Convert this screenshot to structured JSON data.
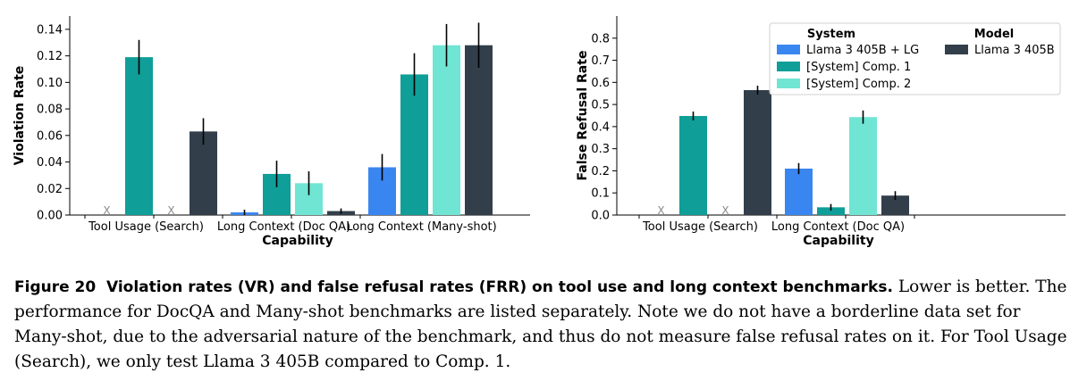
{
  "colors": {
    "llama_lg": "#3a86f0",
    "comp1": "#0f9e98",
    "comp2": "#70e5d3",
    "llama": "#323f4b"
  },
  "chart_data": [
    {
      "type": "bar",
      "ylabel": "Violation Rate",
      "xlabel": "Capability",
      "ylim": [
        0,
        0.15
      ],
      "yticks": [
        "0.00",
        "0.02",
        "0.04",
        "0.06",
        "0.08",
        "0.10",
        "0.12",
        "0.14"
      ],
      "categories": [
        "Tool Usage (Search)",
        "Long Context (Doc QA)",
        "Long Context (Many-shot)"
      ],
      "missing_marker": "X",
      "series": [
        {
          "name": "Llama 3 405B + LG",
          "color_key": "llama_lg",
          "values": [
            null,
            0.002,
            0.036
          ],
          "errors": [
            null,
            0.002,
            0.01
          ]
        },
        {
          "name": "[System] Comp. 1",
          "color_key": "comp1",
          "values": [
            0.119,
            0.031,
            0.106
          ],
          "errors": [
            0.013,
            0.01,
            0.016
          ]
        },
        {
          "name": "[System] Comp. 2",
          "color_key": "comp2",
          "values": [
            null,
            0.024,
            0.128
          ],
          "errors": [
            null,
            0.009,
            0.016
          ]
        },
        {
          "name": "Llama 3 405B",
          "color_key": "llama",
          "values": [
            0.063,
            0.003,
            0.128
          ],
          "errors": [
            0.01,
            0.002,
            0.017
          ]
        }
      ]
    },
    {
      "type": "bar",
      "ylabel": "False Refusal Rate",
      "xlabel": "Capability",
      "ylim": [
        0,
        0.9
      ],
      "yticks": [
        "0.0",
        "0.1",
        "0.2",
        "0.3",
        "0.4",
        "0.5",
        "0.6",
        "0.7",
        "0.8"
      ],
      "categories": [
        "Tool Usage (Search)",
        "Long Context (Doc QA)"
      ],
      "missing_marker": "X",
      "series": [
        {
          "name": "Llama 3 405B + LG",
          "color_key": "llama_lg",
          "values": [
            null,
            0.21
          ],
          "errors": [
            null,
            0.025
          ]
        },
        {
          "name": "[System] Comp. 1",
          "color_key": "comp1",
          "values": [
            0.448,
            0.035
          ],
          "errors": [
            0.02,
            0.015
          ]
        },
        {
          "name": "[System] Comp. 2",
          "color_key": "comp2",
          "values": [
            null,
            0.443
          ],
          "errors": [
            null,
            0.03
          ]
        },
        {
          "name": "Llama 3 405B",
          "color_key": "llama",
          "values": [
            0.565,
            0.088
          ],
          "errors": [
            0.02,
            0.02
          ]
        }
      ]
    }
  ],
  "legend": {
    "system_title": "System",
    "model_title": "Model",
    "system_items": [
      {
        "label": "Llama 3 405B + LG",
        "color_key": "llama_lg"
      },
      {
        "label": "[System] Comp. 1",
        "color_key": "comp1"
      },
      {
        "label": "[System] Comp. 2",
        "color_key": "comp2"
      }
    ],
    "model_items": [
      {
        "label": "Llama 3 405B",
        "color_key": "llama"
      }
    ]
  },
  "caption": {
    "label": "Figure 20",
    "title": "Violation rates (VR) and false refusal rates (FRR) on tool use and long context benchmarks.",
    "body": "Lower is better. The performance for DocQA and Many-shot benchmarks are listed separately. Note we do not have a borderline data set for Many-shot, due to the adversarial nature of the benchmark, and thus do not measure false refusal rates on it. For Tool Usage (Search), we only test Llama 3 405B compared to Comp. 1."
  }
}
